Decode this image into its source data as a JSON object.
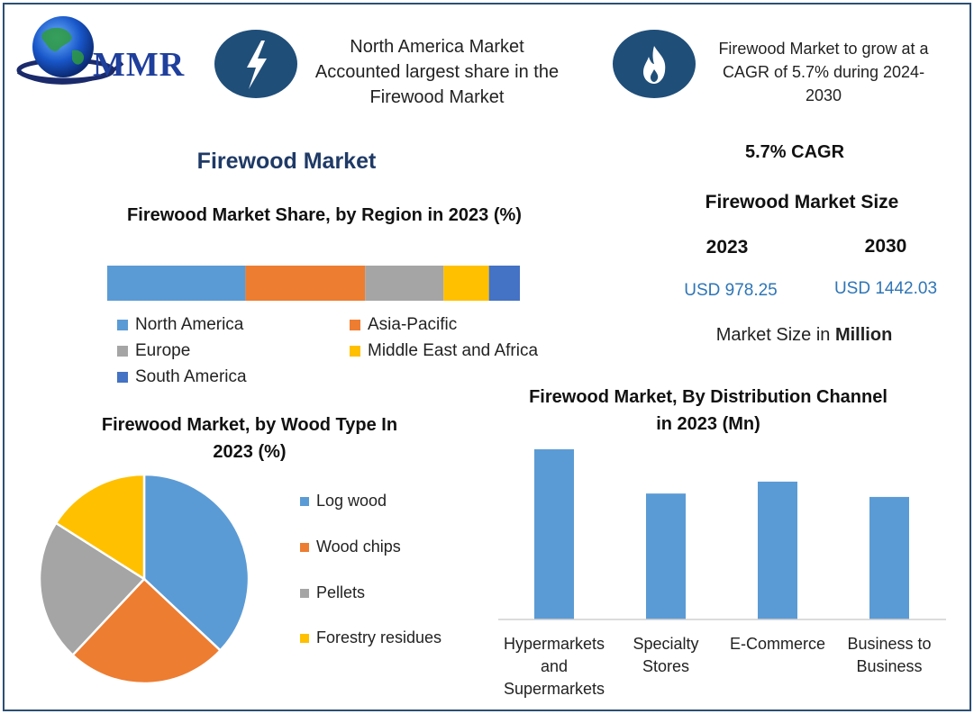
{
  "brand": {
    "name": "MMR"
  },
  "highlights": {
    "region": "North America Market Accounted largest share in the Firewood Market",
    "growth": "Firewood Market to grow at a CAGR of 5.7% during 2024-2030",
    "icons": [
      "lightning-icon",
      "flame-icon"
    ]
  },
  "title": "Firewood Market",
  "market_size": {
    "cagr_label": "5.7% CAGR",
    "heading": "Firewood Market Size",
    "year_a": "2023",
    "year_b": "2030",
    "value_a": "USD 978.25",
    "value_b": "USD 1442.03",
    "unit_prefix": "Market Size in ",
    "unit_bold": "Million"
  },
  "colors": {
    "blue": "#5b9bd5",
    "orange": "#ed7d31",
    "gray": "#a5a5a5",
    "yellow": "#ffc000",
    "darkblue": "#4472c4",
    "navy": "#1f4e79"
  },
  "chart_data": [
    {
      "type": "bar",
      "orientation": "horizontal-stacked",
      "title": "Firewood Market Share, by Region in 2023 (%)",
      "series": [
        {
          "name": "North America",
          "values": [
            33.5
          ]
        },
        {
          "name": "Asia-Pacific",
          "values": [
            29
          ]
        },
        {
          "name": "Europe",
          "values": [
            19
          ]
        },
        {
          "name": "Middle East and Africa",
          "values": [
            11
          ]
        },
        {
          "name": "South America",
          "values": [
            7.5
          ]
        }
      ],
      "legend": [
        "North America",
        "Asia-Pacific",
        "Europe",
        "Middle East and Africa",
        "South America"
      ]
    },
    {
      "type": "pie",
      "title": "Firewood Market, by Wood Type In 2023 (%)",
      "categories": [
        "Log wood",
        "Wood chips",
        "Pellets",
        "Forestry residues"
      ],
      "values": [
        37,
        25,
        22,
        16
      ],
      "legend_position": "right"
    },
    {
      "type": "bar",
      "title": "Firewood Market, By Distribution Channel in 2023 (Mn)",
      "categories": [
        "Hypermarkets and Supermarkets",
        "Specialty Stores",
        "E-Commerce",
        "Business to Business"
      ],
      "category_lines": [
        [
          "Hypermarkets",
          "and",
          "Supermarkets"
        ],
        [
          "Specialty",
          "Stores"
        ],
        [
          "E-Commerce"
        ],
        [
          "Business to",
          "Business"
        ]
      ],
      "values": [
        100,
        74,
        81,
        72
      ],
      "ylim": [
        0,
        100
      ]
    }
  ]
}
